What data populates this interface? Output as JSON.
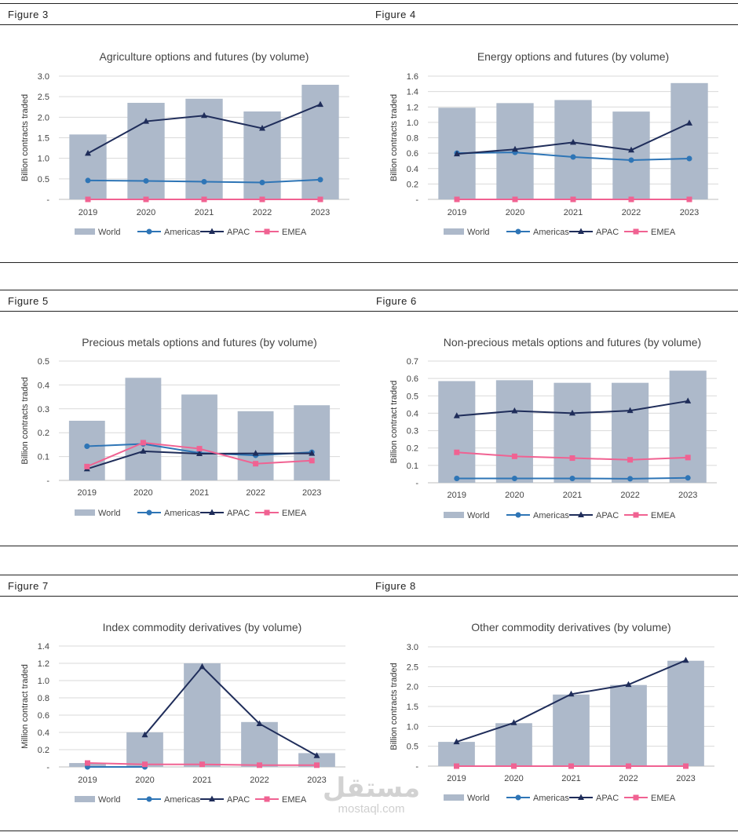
{
  "figures": [
    {
      "label": "Figure 3"
    },
    {
      "label": "Figure 4"
    },
    {
      "label": "Figure 5"
    },
    {
      "label": "Figure 6"
    },
    {
      "label": "Figure 7"
    },
    {
      "label": "Figure 8"
    }
  ],
  "legend": {
    "world": "World",
    "americas": "Americas",
    "apac": "APAC",
    "emea": "EMEA"
  },
  "colors": {
    "world": "#adb9ca",
    "americas": "#2e75b6",
    "apac": "#1f2d5a",
    "emea": "#f06292"
  },
  "watermark": {
    "logo": "مستقل",
    "text": "mostaql.com"
  },
  "chart_data": [
    {
      "type": "bar",
      "title": "Agriculture options and futures (by volume)",
      "ylabel": "Billion contracts traded",
      "categories": [
        "2019",
        "2020",
        "2021",
        "2022",
        "2023"
      ],
      "ylim": [
        0,
        3.0
      ],
      "yticks": [
        "-",
        "0.5",
        "1.0",
        "1.5",
        "2.0",
        "2.5",
        "3.0"
      ],
      "series": [
        {
          "name": "World",
          "kind": "bar",
          "values": [
            1.58,
            2.35,
            2.45,
            2.14,
            2.79
          ]
        },
        {
          "name": "Americas",
          "kind": "line",
          "marker": "circle",
          "values": [
            0.46,
            0.45,
            0.43,
            0.41,
            0.48
          ]
        },
        {
          "name": "APAC",
          "kind": "line",
          "marker": "triangle",
          "values": [
            1.12,
            1.9,
            2.04,
            1.73,
            2.31
          ]
        },
        {
          "name": "EMEA",
          "kind": "line",
          "marker": "square",
          "values": [
            0.0,
            0.0,
            0.0,
            0.0,
            0.0
          ]
        }
      ]
    },
    {
      "type": "bar",
      "title": "Energy options and futures (by volume)",
      "ylabel": "Billion contracts traded",
      "categories": [
        "2019",
        "2020",
        "2021",
        "2022",
        "2023"
      ],
      "ylim": [
        0,
        1.6
      ],
      "yticks": [
        "-",
        "0.2",
        "0.4",
        "0.6",
        "0.8",
        "1.0",
        "1.2",
        "1.4",
        "1.6"
      ],
      "series": [
        {
          "name": "World",
          "kind": "bar",
          "values": [
            1.19,
            1.25,
            1.29,
            1.14,
            1.51
          ]
        },
        {
          "name": "Americas",
          "kind": "line",
          "marker": "circle",
          "values": [
            0.6,
            0.61,
            0.55,
            0.51,
            0.53
          ]
        },
        {
          "name": "APAC",
          "kind": "line",
          "marker": "triangle",
          "values": [
            0.59,
            0.65,
            0.74,
            0.64,
            0.99
          ]
        },
        {
          "name": "EMEA",
          "kind": "line",
          "marker": "square",
          "values": [
            0.0,
            0.0,
            0.0,
            0.0,
            0.0
          ]
        }
      ]
    },
    {
      "type": "bar",
      "title": "Precious metals options and futures (by volume)",
      "ylabel": "Billion contracts traded",
      "categories": [
        "2019",
        "2020",
        "2021",
        "2022",
        "2023"
      ],
      "ylim": [
        0,
        0.5
      ],
      "yticks": [
        "-",
        "0.1",
        "0.2",
        "0.3",
        "0.4",
        "0.5"
      ],
      "series": [
        {
          "name": "World",
          "kind": "bar",
          "values": [
            0.25,
            0.43,
            0.36,
            0.29,
            0.315
          ]
        },
        {
          "name": "Americas",
          "kind": "line",
          "marker": "circle",
          "values": [
            0.143,
            0.153,
            0.115,
            0.105,
            0.118
          ]
        },
        {
          "name": "APAC",
          "kind": "line",
          "marker": "triangle",
          "values": [
            0.048,
            0.122,
            0.112,
            0.113,
            0.113
          ]
        },
        {
          "name": "EMEA",
          "kind": "line",
          "marker": "square",
          "values": [
            0.058,
            0.158,
            0.133,
            0.07,
            0.083
          ]
        }
      ]
    },
    {
      "type": "bar",
      "title": "Non-precious metals options and futures (by volume)",
      "ylabel": "Billion contract traded",
      "categories": [
        "2019",
        "2020",
        "2021",
        "2022",
        "2023"
      ],
      "ylim": [
        0,
        0.7
      ],
      "yticks": [
        "-",
        "0.1",
        "0.2",
        "0.3",
        "0.4",
        "0.5",
        "0.6",
        "0.7"
      ],
      "series": [
        {
          "name": "World",
          "kind": "bar",
          "values": [
            0.585,
            0.59,
            0.575,
            0.575,
            0.645
          ]
        },
        {
          "name": "Americas",
          "kind": "line",
          "marker": "circle",
          "values": [
            0.025,
            0.025,
            0.025,
            0.023,
            0.028
          ]
        },
        {
          "name": "APAC",
          "kind": "line",
          "marker": "triangle",
          "values": [
            0.385,
            0.413,
            0.4,
            0.415,
            0.47
          ]
        },
        {
          "name": "EMEA",
          "kind": "line",
          "marker": "square",
          "values": [
            0.175,
            0.152,
            0.142,
            0.132,
            0.145
          ]
        }
      ]
    },
    {
      "type": "bar",
      "title": "Index commodity derivatives (by volume)",
      "ylabel": "Million contract traded",
      "categories": [
        "2019",
        "2020",
        "2021",
        "2022",
        "2023"
      ],
      "ylim": [
        0,
        1.4
      ],
      "yticks": [
        "-",
        "0.2",
        "0.4",
        "0.6",
        "0.8",
        "1.0",
        "1.2",
        "1.4"
      ],
      "series": [
        {
          "name": "World",
          "kind": "bar",
          "values": [
            0.045,
            0.4,
            1.2,
            0.52,
            0.16
          ]
        },
        {
          "name": "Americas",
          "kind": "line",
          "marker": "circle",
          "values": [
            0.0,
            0.0,
            null,
            null,
            null
          ]
        },
        {
          "name": "APAC",
          "kind": "line",
          "marker": "triangle",
          "values": [
            null,
            0.37,
            1.16,
            0.5,
            0.13
          ]
        },
        {
          "name": "EMEA",
          "kind": "line",
          "marker": "square",
          "values": [
            0.045,
            0.03,
            0.03,
            0.02,
            0.02
          ]
        }
      ]
    },
    {
      "type": "bar",
      "title": "Other commodity derivatives (by volume)",
      "ylabel": "Billion contracts traded",
      "categories": [
        "2019",
        "2020",
        "2021",
        "2022",
        "2023"
      ],
      "ylim": [
        0,
        3.0
      ],
      "yticks": [
        "-",
        "0.5",
        "1.0",
        "1.5",
        "2.0",
        "2.5",
        "3.0"
      ],
      "series": [
        {
          "name": "World",
          "kind": "bar",
          "values": [
            0.61,
            1.08,
            1.8,
            2.04,
            2.65
          ]
        },
        {
          "name": "Americas",
          "kind": "line",
          "marker": "circle",
          "values": [
            0.0,
            0.0,
            0.0,
            0.0,
            0.0
          ]
        },
        {
          "name": "APAC",
          "kind": "line",
          "marker": "triangle",
          "values": [
            0.61,
            1.09,
            1.81,
            2.05,
            2.66
          ]
        },
        {
          "name": "EMEA",
          "kind": "line",
          "marker": "square",
          "values": [
            0.0,
            0.0,
            0.0,
            0.0,
            0.0
          ]
        }
      ]
    }
  ]
}
